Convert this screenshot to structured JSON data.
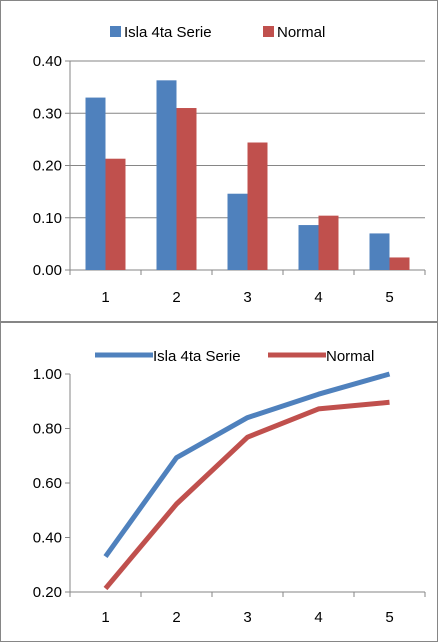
{
  "chart_data": [
    {
      "type": "bar",
      "categories": [
        "1",
        "2",
        "3",
        "4",
        "5"
      ],
      "series": [
        {
          "name": "Isla 4ta Serie",
          "values": [
            0.33,
            0.363,
            0.146,
            0.086,
            0.07
          ],
          "color": "#4f81bd"
        },
        {
          "name": "Normal",
          "values": [
            0.213,
            0.31,
            0.244,
            0.104,
            0.024
          ],
          "color": "#c0504d"
        }
      ],
      "ylim": [
        0,
        0.4
      ],
      "yticks": [
        "0.00",
        "0.10",
        "0.20",
        "0.30",
        "0.40"
      ],
      "grid": true,
      "legend": "top"
    },
    {
      "type": "line",
      "categories": [
        "1",
        "2",
        "3",
        "4",
        "5"
      ],
      "series": [
        {
          "name": "Isla 4ta Serie",
          "values": [
            0.33,
            0.693,
            0.84,
            0.926,
            1.0
          ],
          "color": "#4f81bd"
        },
        {
          "name": "Normal",
          "values": [
            0.213,
            0.523,
            0.768,
            0.872,
            0.896
          ],
          "color": "#c0504d"
        }
      ],
      "ylim": [
        0.2,
        1.0
      ],
      "yticks": [
        "0.20",
        "0.40",
        "0.60",
        "0.80",
        "1.00"
      ],
      "grid": false,
      "legend": "top"
    }
  ]
}
